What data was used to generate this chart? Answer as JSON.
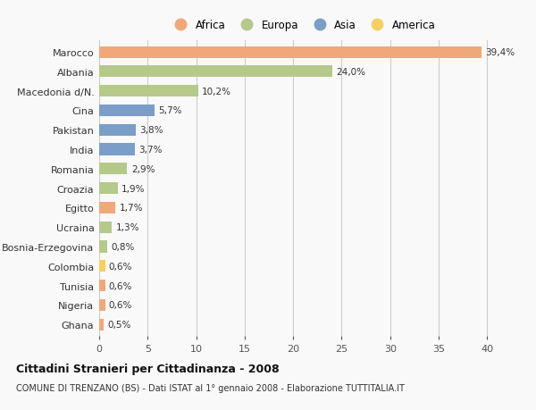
{
  "categories": [
    "Marocco",
    "Albania",
    "Macedonia d/N.",
    "Cina",
    "Pakistan",
    "India",
    "Romania",
    "Croazia",
    "Egitto",
    "Ucraina",
    "Bosnia-Erzegovina",
    "Colombia",
    "Tunisia",
    "Nigeria",
    "Ghana"
  ],
  "values": [
    39.4,
    24.0,
    10.2,
    5.7,
    3.8,
    3.7,
    2.9,
    1.9,
    1.7,
    1.3,
    0.8,
    0.6,
    0.6,
    0.6,
    0.5
  ],
  "labels": [
    "39,4%",
    "24,0%",
    "10,2%",
    "5,7%",
    "3,8%",
    "3,7%",
    "2,9%",
    "1,9%",
    "1,7%",
    "1,3%",
    "0,8%",
    "0,6%",
    "0,6%",
    "0,6%",
    "0,5%"
  ],
  "continents": [
    "Africa",
    "Europa",
    "Europa",
    "Asia",
    "Asia",
    "Asia",
    "Europa",
    "Europa",
    "Africa",
    "Europa",
    "Europa",
    "America",
    "Africa",
    "Africa",
    "Africa"
  ],
  "colors": {
    "Africa": "#F0A87A",
    "Europa": "#B5C98A",
    "Asia": "#7A9EC8",
    "America": "#F5D060"
  },
  "title_bold": "Cittadini Stranieri per Cittadinanza - 2008",
  "subtitle": "COMUNE DI TRENZANO (BS) - Dati ISTAT al 1° gennaio 2008 - Elaborazione TUTTITALIA.IT",
  "xlim": [
    0,
    42
  ],
  "xticks": [
    0,
    5,
    10,
    15,
    20,
    25,
    30,
    35,
    40
  ],
  "background_color": "#f9f9f9",
  "grid_color": "#cccccc",
  "bar_height": 0.6,
  "legend_order": [
    "Africa",
    "Europa",
    "Asia",
    "America"
  ]
}
